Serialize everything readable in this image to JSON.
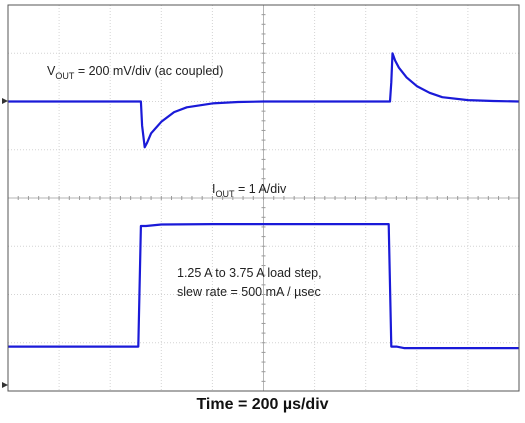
{
  "chart_data": {
    "type": "line",
    "title": "",
    "grid": true,
    "grid_divisions": {
      "x": 10,
      "y": 8
    },
    "xlabel": "Time = 200 µs/div",
    "x_unit": "µs",
    "xlim": [
      0,
      2000
    ],
    "series": [
      {
        "label_main": "V",
        "label_sub": "OUT",
        "label_rest": " = 200 mV/div (ac coupled)",
        "scale": "200 mV/div",
        "coupling": "ac",
        "baseline_div": 2.0,
        "x": [
          0,
          520,
          525,
          535,
          545,
          560,
          600,
          650,
          700,
          800,
          900,
          1000,
          1100,
          1200,
          1300,
          1400,
          1495,
          1500,
          1505,
          1515,
          1530,
          1560,
          1600,
          1650,
          1700,
          1800,
          1900,
          2000
        ],
        "y": [
          0,
          0,
          -0.5,
          -0.95,
          -0.85,
          -0.66,
          -0.42,
          -0.22,
          -0.12,
          -0.04,
          -0.01,
          0,
          0,
          0,
          0,
          0,
          0,
          0.4,
          1.0,
          0.85,
          0.7,
          0.5,
          0.32,
          0.18,
          0.09,
          0.03,
          0.01,
          0
        ]
      },
      {
        "label_main": "I",
        "label_sub": "OUT",
        "label_rest": " = 1 A/div",
        "scale": "1 A/div",
        "baseline_div": 5.0,
        "x": [
          0,
          510,
          520,
          540,
          600,
          800,
          1000,
          1200,
          1400,
          1490,
          1500,
          1520,
          1550,
          1700,
          1900,
          2000
        ],
        "y": [
          1.25,
          1.25,
          3.75,
          3.75,
          3.78,
          3.79,
          3.79,
          3.79,
          3.79,
          3.79,
          1.25,
          1.25,
          1.22,
          1.22,
          1.22,
          1.22
        ]
      }
    ],
    "annotations": [
      {
        "text": "1.25 A to 3.75 A load step,"
      },
      {
        "text": "slew rate = 500 mA / µsec"
      }
    ]
  },
  "style": {
    "trace_color": "#1a1ad8",
    "grid_color": "#d4d4d4",
    "frame_color": "#555555"
  }
}
